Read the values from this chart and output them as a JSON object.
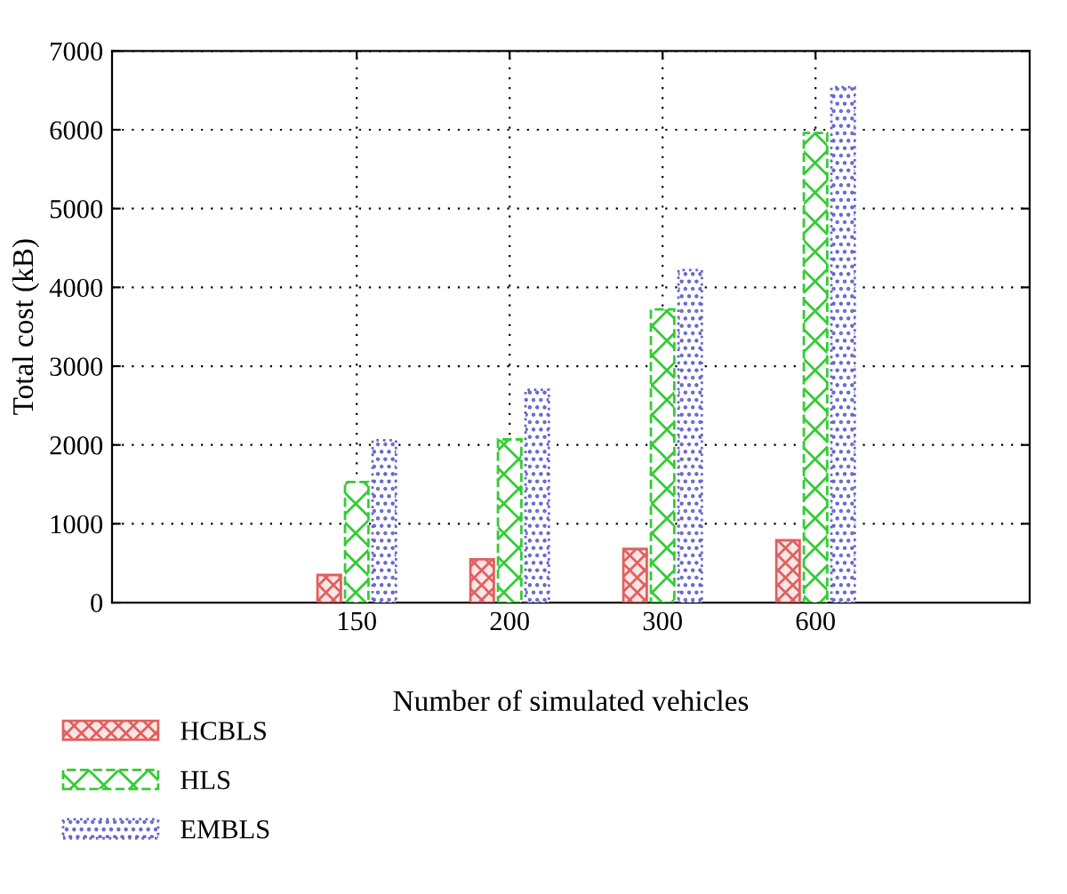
{
  "chart_data": {
    "type": "bar",
    "xlabel": "Number of simulated vehicles",
    "ylabel": "Total cost (kB)",
    "categories": [
      "150",
      "200",
      "300",
      "600"
    ],
    "series": [
      {
        "name": "HCBLS",
        "color": "#e06060",
        "values": [
          350,
          550,
          680,
          790
        ]
      },
      {
        "name": "HLS",
        "color": "#33cc33",
        "values": [
          1530,
          2070,
          3720,
          5960
        ]
      },
      {
        "name": "EMBLS",
        "color": "#6666cc",
        "values": [
          2060,
          2700,
          4220,
          6540
        ]
      }
    ],
    "ylim": [
      0,
      7000
    ],
    "yticks": [
      0,
      1000,
      2000,
      3000,
      4000,
      5000,
      6000,
      7000
    ],
    "grid": true,
    "legend": "bottom left"
  }
}
